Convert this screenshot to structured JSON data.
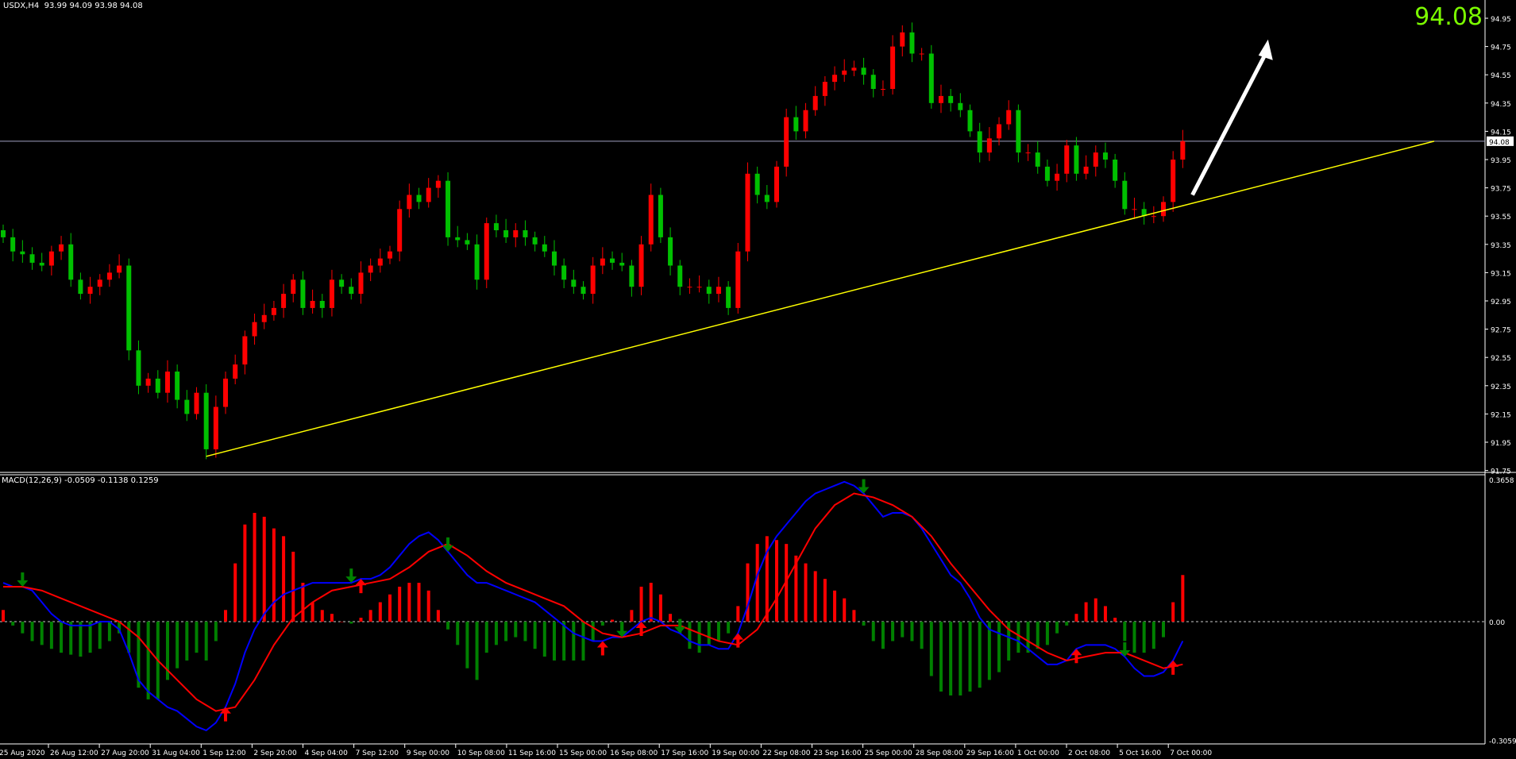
{
  "header": {
    "symbol": "USDX,H4",
    "ohlc": "93.99 94.09 93.98 94.08"
  },
  "big_price": "94.08",
  "macd_header": "MACD(12,26,9) -0.0509 -0.1138 0.1259",
  "colors": {
    "up_candle": "#ff0000",
    "down_candle": "#00c000",
    "trendline": "#ffff00",
    "arrow": "#ffffff",
    "macd_main": "#0000ff",
    "macd_signal": "#ff0000",
    "hist_pos": "#ff0000",
    "hist_neg": "#008000",
    "axis": "#ffffff",
    "price_line": "#a0a0c0"
  },
  "chart_data": [
    {
      "type": "candlestick",
      "title": "USDX,H4",
      "ylim": [
        91.7,
        95.05
      ],
      "yticks": [
        "94.95",
        "94.75",
        "94.55",
        "94.35",
        "94.15",
        "93.95",
        "93.75",
        "93.55",
        "93.35",
        "93.15",
        "92.95",
        "92.75",
        "92.55",
        "92.35",
        "92.15",
        "91.95",
        "91.75"
      ],
      "current_price": "94.08",
      "closes": [
        93.4,
        93.3,
        93.28,
        93.22,
        93.2,
        93.3,
        93.35,
        93.1,
        93.0,
        93.05,
        93.1,
        93.15,
        93.2,
        92.6,
        92.35,
        92.4,
        92.3,
        92.45,
        92.25,
        92.15,
        92.3,
        91.9,
        92.2,
        92.4,
        92.5,
        92.7,
        92.8,
        92.85,
        92.9,
        93.0,
        93.1,
        92.9,
        92.95,
        92.9,
        93.1,
        93.05,
        93.0,
        93.15,
        93.2,
        93.25,
        93.3,
        93.6,
        93.7,
        93.65,
        93.75,
        93.8,
        93.4,
        93.38,
        93.35,
        93.1,
        93.5,
        93.45,
        93.4,
        93.45,
        93.4,
        93.35,
        93.3,
        93.2,
        93.1,
        93.05,
        93.0,
        93.2,
        93.25,
        93.22,
        93.2,
        93.05,
        93.35,
        93.7,
        93.4,
        93.2,
        93.05,
        93.05,
        93.05,
        93.0,
        93.05,
        92.9,
        93.3,
        93.85,
        93.7,
        93.65,
        93.9,
        94.25,
        94.15,
        94.3,
        94.4,
        94.5,
        94.55,
        94.58,
        94.6,
        94.55,
        94.45,
        94.45,
        94.75,
        94.85,
        94.7,
        94.7,
        94.35,
        94.4,
        94.35,
        94.3,
        94.15,
        94.0,
        94.1,
        94.2,
        94.3,
        94.0,
        94.0,
        93.9,
        93.8,
        93.85,
        94.05,
        93.85,
        93.9,
        94.0,
        93.95,
        93.8,
        93.6,
        93.6,
        93.55,
        93.55,
        93.65,
        93.95,
        94.08
      ],
      "trendline": {
        "from": {
          "bar": 21,
          "price": 91.85
        },
        "to": {
          "bar": 148,
          "price": 94.08
        }
      },
      "arrow": {
        "from": {
          "bar": 123,
          "price": 93.7
        },
        "to": {
          "bar": 130,
          "price": 94.8
        }
      },
      "xticks": [
        "25 Aug 2020",
        "26 Aug 12:00",
        "27 Aug 20:00",
        "31 Aug 04:00",
        "1 Sep 12:00",
        "2 Sep 20:00",
        "4 Sep 04:00",
        "7 Sep 12:00",
        "9 Sep 00:00",
        "10 Sep 08:00",
        "11 Sep 16:00",
        "15 Sep 00:00",
        "16 Sep 08:00",
        "17 Sep 16:00",
        "19 Sep 00:00",
        "22 Sep 08:00",
        "23 Sep 16:00",
        "25 Sep 00:00",
        "28 Sep 08:00",
        "29 Sep 16:00",
        "1 Oct 00:00",
        "2 Oct 08:00",
        "5 Oct 16:00",
        "7 Oct 00:00"
      ]
    },
    {
      "type": "macd",
      "title": "MACD(12,26,9)",
      "ylim": [
        -0.3059,
        0.3658
      ],
      "yticks": [
        "0.3658",
        "0.00",
        "-0.3059"
      ],
      "histogram": [
        0.03,
        -0.01,
        -0.03,
        -0.05,
        -0.06,
        -0.07,
        -0.08,
        -0.085,
        -0.09,
        -0.08,
        -0.07,
        -0.05,
        -0.03,
        -0.08,
        -0.17,
        -0.2,
        -0.2,
        -0.15,
        -0.12,
        -0.1,
        -0.08,
        -0.1,
        -0.05,
        0.03,
        0.15,
        0.25,
        0.28,
        0.27,
        0.24,
        0.22,
        0.18,
        0.1,
        0.05,
        0.03,
        0.02,
        0.0,
        -0.005,
        0.01,
        0.03,
        0.05,
        0.07,
        0.09,
        0.1,
        0.1,
        0.08,
        0.03,
        -0.02,
        -0.06,
        -0.12,
        -0.15,
        -0.08,
        -0.06,
        -0.05,
        -0.04,
        -0.05,
        -0.07,
        -0.09,
        -0.1,
        -0.1,
        -0.1,
        -0.1,
        -0.05,
        -0.01,
        0.005,
        -0.03,
        0.03,
        0.09,
        0.1,
        0.07,
        0.02,
        -0.03,
        -0.07,
        -0.08,
        -0.06,
        -0.05,
        -0.03,
        0.04,
        0.15,
        0.2,
        0.22,
        0.21,
        0.2,
        0.17,
        0.15,
        0.13,
        0.11,
        0.08,
        0.06,
        0.03,
        -0.01,
        -0.05,
        -0.07,
        -0.05,
        -0.04,
        -0.05,
        -0.07,
        -0.14,
        -0.18,
        -0.19,
        -0.19,
        -0.18,
        -0.17,
        -0.15,
        -0.13,
        -0.1,
        -0.08,
        -0.08,
        -0.07,
        -0.06,
        -0.03,
        -0.01,
        0.02,
        0.05,
        0.06,
        0.04,
        0.01,
        -0.05,
        -0.08,
        -0.08,
        -0.07,
        -0.04,
        0.05,
        0.12
      ],
      "main": [
        0.1,
        0.09,
        0.09,
        0.08,
        0.05,
        0.02,
        0.0,
        -0.01,
        -0.01,
        -0.01,
        0.0,
        0.0,
        -0.02,
        -0.08,
        -0.15,
        -0.18,
        -0.2,
        -0.22,
        -0.23,
        -0.25,
        -0.27,
        -0.28,
        -0.26,
        -0.22,
        -0.16,
        -0.08,
        -0.02,
        0.02,
        0.05,
        0.07,
        0.08,
        0.09,
        0.1,
        0.1,
        0.1,
        0.1,
        0.1,
        0.11,
        0.11,
        0.12,
        0.14,
        0.17,
        0.2,
        0.22,
        0.23,
        0.21,
        0.18,
        0.15,
        0.12,
        0.1,
        0.1,
        0.09,
        0.08,
        0.07,
        0.06,
        0.05,
        0.03,
        0.01,
        -0.01,
        -0.03,
        -0.04,
        -0.05,
        -0.05,
        -0.04,
        -0.04,
        -0.02,
        0.0,
        0.01,
        0.0,
        -0.02,
        -0.03,
        -0.05,
        -0.06,
        -0.06,
        -0.07,
        -0.07,
        -0.03,
        0.04,
        0.12,
        0.18,
        0.22,
        0.25,
        0.28,
        0.31,
        0.33,
        0.34,
        0.35,
        0.36,
        0.35,
        0.33,
        0.3,
        0.27,
        0.28,
        0.28,
        0.27,
        0.24,
        0.2,
        0.16,
        0.12,
        0.1,
        0.06,
        0.01,
        -0.02,
        -0.03,
        -0.04,
        -0.05,
        -0.07,
        -0.09,
        -0.11,
        -0.11,
        -0.1,
        -0.07,
        -0.06,
        -0.06,
        -0.06,
        -0.07,
        -0.09,
        -0.12,
        -0.14,
        -0.14,
        -0.13,
        -0.1,
        -0.05
      ],
      "signal_every_2_bars": [
        0.09,
        0.09,
        0.08,
        0.06,
        0.04,
        0.02,
        0.0,
        -0.04,
        -0.1,
        -0.15,
        -0.2,
        -0.23,
        -0.22,
        -0.15,
        -0.06,
        0.01,
        0.05,
        0.08,
        0.09,
        0.1,
        0.11,
        0.14,
        0.18,
        0.2,
        0.17,
        0.13,
        0.1,
        0.08,
        0.06,
        0.04,
        0.0,
        -0.03,
        -0.04,
        -0.03,
        -0.01,
        -0.01,
        -0.03,
        -0.05,
        -0.06,
        -0.02,
        0.06,
        0.15,
        0.24,
        0.3,
        0.33,
        0.32,
        0.3,
        0.27,
        0.22,
        0.15,
        0.09,
        0.03,
        -0.02,
        -0.05,
        -0.08,
        -0.1,
        -0.09,
        -0.08,
        -0.08,
        -0.1,
        -0.12,
        -0.11
      ],
      "signals": [
        {
          "bar": 2,
          "type": "sell"
        },
        {
          "bar": 23,
          "type": "buy"
        },
        {
          "bar": 36,
          "type": "sell"
        },
        {
          "bar": 37,
          "type": "buy"
        },
        {
          "bar": 46,
          "type": "sell"
        },
        {
          "bar": 62,
          "type": "buy"
        },
        {
          "bar": 64,
          "type": "sell"
        },
        {
          "bar": 66,
          "type": "buy"
        },
        {
          "bar": 70,
          "type": "sell"
        },
        {
          "bar": 76,
          "type": "buy"
        },
        {
          "bar": 89,
          "type": "sell"
        },
        {
          "bar": 111,
          "type": "buy"
        },
        {
          "bar": 116,
          "type": "sell"
        },
        {
          "bar": 121,
          "type": "buy"
        }
      ]
    }
  ]
}
